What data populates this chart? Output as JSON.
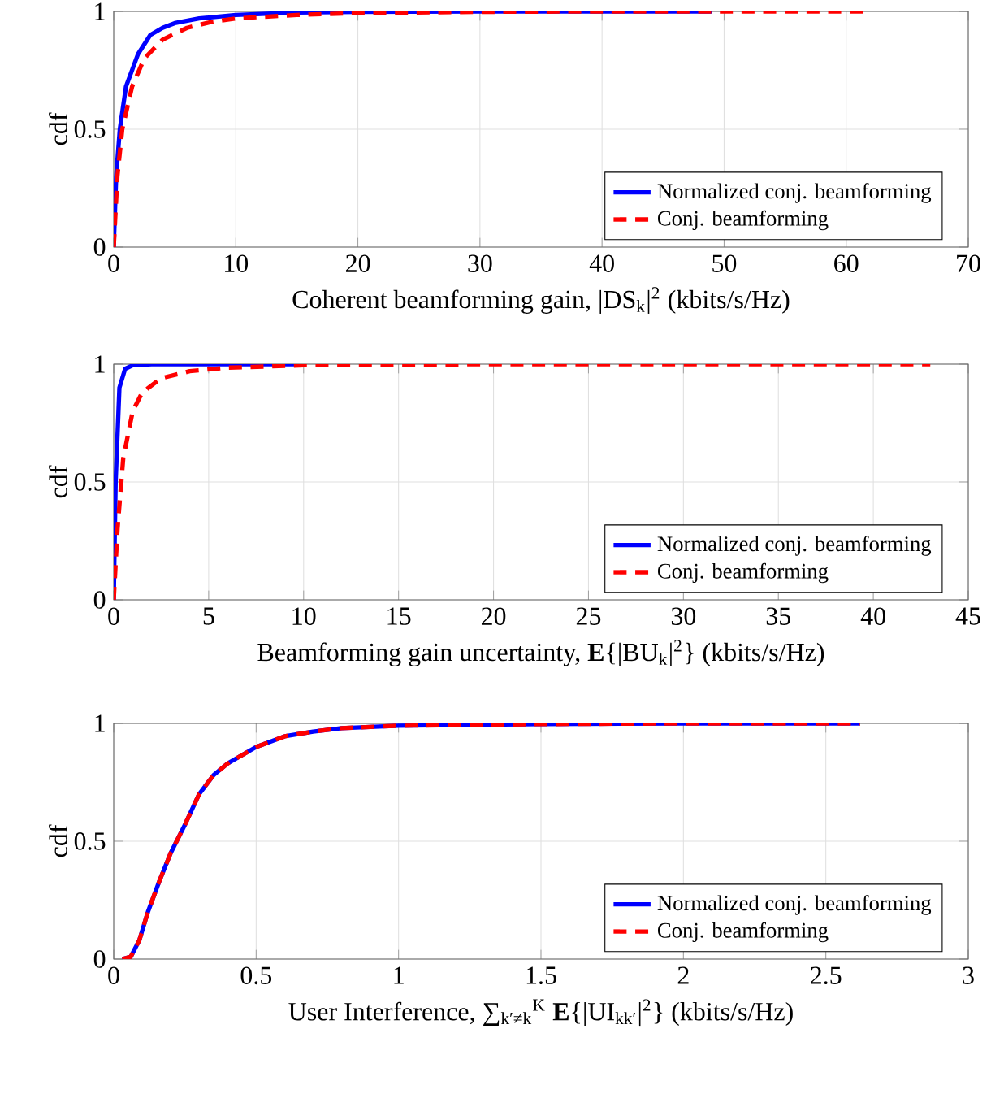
{
  "chart_data": [
    {
      "type": "line",
      "xlabel": "Coherent beamforming gain, |DS$_{k}$|$^{2}$ (kbits/s/Hz)",
      "ylabel": "cdf",
      "xlim": [
        0,
        70
      ],
      "ylim": [
        0,
        1
      ],
      "xticks": [
        0,
        10,
        20,
        30,
        40,
        50,
        60,
        70
      ],
      "yticks": [
        0,
        0.5,
        1
      ],
      "grid": true,
      "legend": "bottom right",
      "series": [
        {
          "name": "Normalized conj. beamforming",
          "color": "#0000ff",
          "line_style": "solid",
          "x": [
            0,
            0.2,
            0.5,
            1,
            2,
            3,
            4,
            5,
            7,
            10,
            15,
            20,
            30,
            49
          ],
          "values": [
            0,
            0.3,
            0.5,
            0.68,
            0.82,
            0.9,
            0.93,
            0.95,
            0.97,
            0.985,
            0.995,
            0.998,
            1,
            1
          ]
        },
        {
          "name": "Conj. beamforming",
          "color": "#ff0000",
          "line_style": "dashed",
          "x": [
            0,
            0.3,
            0.7,
            1.5,
            2.5,
            4,
            6,
            8,
            10,
            15,
            20,
            30,
            40,
            62
          ],
          "values": [
            0,
            0.3,
            0.5,
            0.68,
            0.8,
            0.88,
            0.93,
            0.955,
            0.97,
            0.985,
            0.993,
            0.998,
            1,
            1
          ]
        }
      ]
    },
    {
      "type": "line",
      "xlabel": "Beamforming gain uncertainty, **E**{|BU$_{k}$|$^{2}$} (kbits/s/Hz)",
      "ylabel": "cdf",
      "xlim": [
        0,
        45
      ],
      "ylim": [
        0,
        1
      ],
      "xticks": [
        0,
        5,
        10,
        15,
        20,
        25,
        30,
        35,
        40,
        45
      ],
      "yticks": [
        0,
        0.5,
        1
      ],
      "grid": true,
      "legend": "bottom right",
      "series": [
        {
          "name": "Normalized conj. beamforming",
          "color": "#0000ff",
          "line_style": "solid",
          "x": [
            0,
            0.1,
            0.3,
            0.6,
            1,
            2,
            9.8
          ],
          "values": [
            0,
            0.5,
            0.9,
            0.98,
            0.995,
            1,
            1
          ]
        },
        {
          "name": "Conj. beamforming",
          "color": "#ff0000",
          "line_style": "dashed",
          "x": [
            0,
            0.2,
            0.5,
            1,
            1.5,
            2.5,
            4,
            6,
            10,
            20,
            43
          ],
          "values": [
            0,
            0.3,
            0.6,
            0.8,
            0.88,
            0.94,
            0.97,
            0.985,
            0.995,
            1,
            1
          ]
        }
      ]
    },
    {
      "type": "line",
      "xlabel": "User Interference, ∑$_{k′≠k}$$^{K}$ **E**{|UI$_{kk′}$|$^{2}$} (kbits/s/Hz)",
      "ylabel": "cdf",
      "xlim": [
        0,
        3
      ],
      "ylim": [
        0,
        1
      ],
      "xticks": [
        0,
        0.5,
        1,
        1.5,
        2,
        2.5,
        3
      ],
      "yticks": [
        0,
        0.5,
        1
      ],
      "grid": true,
      "legend": "bottom right",
      "series": [
        {
          "name": "Normalized conj. beamforming",
          "color": "#0000ff",
          "line_style": "solid",
          "x": [
            0.03,
            0.06,
            0.09,
            0.12,
            0.16,
            0.2,
            0.25,
            0.3,
            0.35,
            0.4,
            0.5,
            0.6,
            0.7,
            0.8,
            1,
            1.5,
            2,
            2.62
          ],
          "values": [
            0,
            0.01,
            0.08,
            0.2,
            0.33,
            0.45,
            0.57,
            0.7,
            0.78,
            0.83,
            0.9,
            0.945,
            0.965,
            0.98,
            0.99,
            0.997,
            1,
            1
          ]
        },
        {
          "name": "Conj. beamforming",
          "color": "#ff0000",
          "line_style": "dashed",
          "x": [
            0.03,
            0.06,
            0.09,
            0.12,
            0.16,
            0.2,
            0.25,
            0.3,
            0.35,
            0.4,
            0.5,
            0.6,
            0.7,
            0.8,
            1,
            1.5,
            2,
            2.62
          ],
          "values": [
            0,
            0.01,
            0.08,
            0.2,
            0.33,
            0.45,
            0.57,
            0.7,
            0.78,
            0.83,
            0.9,
            0.945,
            0.965,
            0.98,
            0.99,
            0.997,
            1,
            1
          ]
        }
      ]
    }
  ]
}
